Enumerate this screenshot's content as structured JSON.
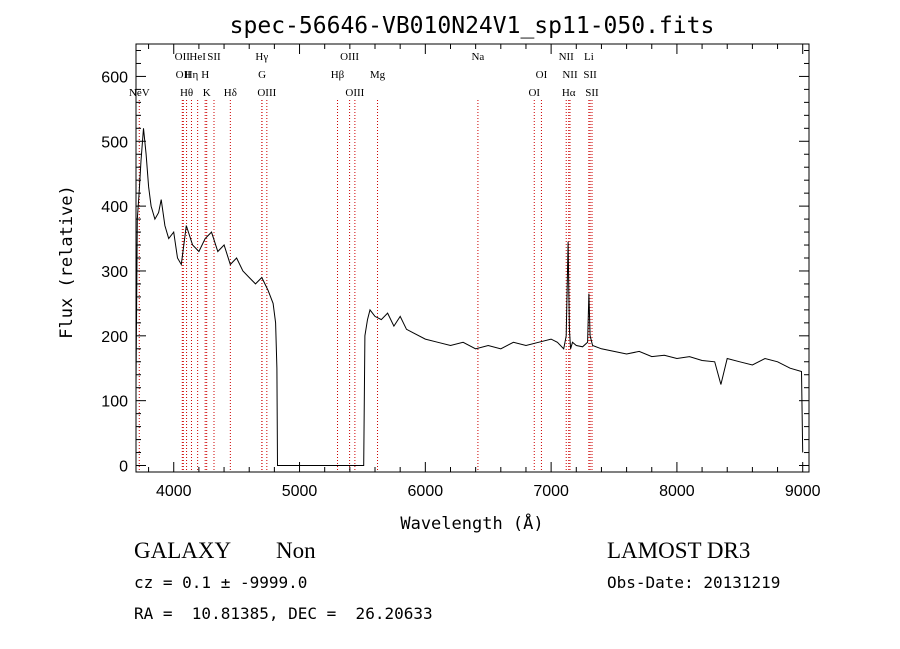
{
  "chart_data": {
    "type": "line",
    "title": "spec-56646-VB010N24V1_sp11-050.fits",
    "xlabel": "Wavelength (Å)",
    "ylabel": "Flux (relative)",
    "xlim": [
      3700,
      9050
    ],
    "ylim": [
      -10,
      650
    ],
    "xticks": [
      4000,
      5000,
      6000,
      7000,
      8000,
      9000
    ],
    "yticks": [
      0,
      100,
      200,
      300,
      400,
      500,
      600
    ],
    "grid": false,
    "series": [
      {
        "name": "flux",
        "x": [
          3700,
          3710,
          3725,
          3740,
          3760,
          3780,
          3800,
          3820,
          3850,
          3880,
          3900,
          3930,
          3960,
          4000,
          4030,
          4060,
          4100,
          4150,
          4200,
          4250,
          4300,
          4350,
          4400,
          4450,
          4500,
          4550,
          4600,
          4650,
          4700,
          4750,
          4790,
          4810,
          4820,
          4825,
          5510,
          5520,
          5540,
          5560,
          5600,
          5650,
          5700,
          5750,
          5800,
          5850,
          5900,
          6000,
          6100,
          6200,
          6300,
          6400,
          6500,
          6600,
          6700,
          6800,
          6900,
          7000,
          7050,
          7100,
          7120,
          7135,
          7145,
          7155,
          7170,
          7200,
          7250,
          7290,
          7300,
          7310,
          7330,
          7400,
          7500,
          7600,
          7700,
          7800,
          7900,
          8000,
          8100,
          8200,
          8300,
          8350,
          8400,
          8500,
          8600,
          8700,
          8800,
          8900,
          8990,
          9000
        ],
        "y": [
          120,
          380,
          420,
          470,
          520,
          480,
          430,
          400,
          380,
          390,
          410,
          370,
          350,
          360,
          320,
          310,
          370,
          340,
          330,
          350,
          360,
          330,
          340,
          310,
          320,
          300,
          290,
          280,
          290,
          270,
          250,
          220,
          150,
          0,
          0,
          200,
          225,
          240,
          230,
          225,
          235,
          215,
          230,
          210,
          205,
          195,
          190,
          185,
          190,
          180,
          185,
          180,
          190,
          185,
          190,
          195,
          190,
          180,
          200,
          345,
          210,
          180,
          190,
          185,
          183,
          190,
          265,
          200,
          185,
          180,
          176,
          172,
          176,
          168,
          170,
          165,
          168,
          162,
          160,
          125,
          165,
          160,
          155,
          165,
          160,
          150,
          145,
          20
        ]
      }
    ],
    "emission_lines": [
      {
        "label": "NeV",
        "wl": 3726,
        "row": 3
      },
      {
        "label": "OII",
        "wl": 4068,
        "row": 1
      },
      {
        "label": "OII",
        "wl": 4076,
        "row": 2
      },
      {
        "label": "Hθ",
        "wl": 4102,
        "row": 3
      },
      {
        "label": "Hη",
        "wl": 4141,
        "row": 2
      },
      {
        "label": "HeI",
        "wl": 4190,
        "row": 1
      },
      {
        "label": "H",
        "wl": 4250,
        "row": 2
      },
      {
        "label": "K",
        "wl": 4262,
        "row": 3
      },
      {
        "label": "SII",
        "wl": 4320,
        "row": 1
      },
      {
        "label": "Hδ",
        "wl": 4450,
        "row": 3
      },
      {
        "label": "Hγ",
        "wl": 4700,
        "row": 1
      },
      {
        "label": "G",
        "wl": 4702,
        "row": 2
      },
      {
        "label": "OIII",
        "wl": 4740,
        "row": 3
      },
      {
        "label": "Hβ",
        "wl": 5302,
        "row": 2
      },
      {
        "label": "OIII",
        "wl": 5398,
        "row": 1
      },
      {
        "label": "OIII",
        "wl": 5440,
        "row": 3
      },
      {
        "label": "Mg",
        "wl": 5620,
        "row": 2
      },
      {
        "label": "Na",
        "wl": 6418,
        "row": 1
      },
      {
        "label": "OI",
        "wl": 6923,
        "row": 2
      },
      {
        "label": "OI",
        "wl": 6866,
        "row": 3
      },
      {
        "label": "NII",
        "wl": 7120,
        "row": 1
      },
      {
        "label": "NII",
        "wl": 7150,
        "row": 2
      },
      {
        "label": "Hα",
        "wl": 7140,
        "row": 3
      },
      {
        "label": "Li",
        "wl": 7300,
        "row": 1
      },
      {
        "label": "SII",
        "wl": 7310,
        "row": 2
      },
      {
        "label": "SII",
        "wl": 7325,
        "row": 3
      }
    ],
    "line_color": "#000000",
    "marker_color": "#cc0000"
  },
  "info": {
    "object_class": "GALAXY",
    "subclass": "Non",
    "survey": "LAMOST DR3",
    "redshift": "cz = 0.1 ± -9999.0",
    "obs_date": "Obs-Date: 20131219",
    "coords": "RA =  10.81385, DEC =  26.20633"
  }
}
